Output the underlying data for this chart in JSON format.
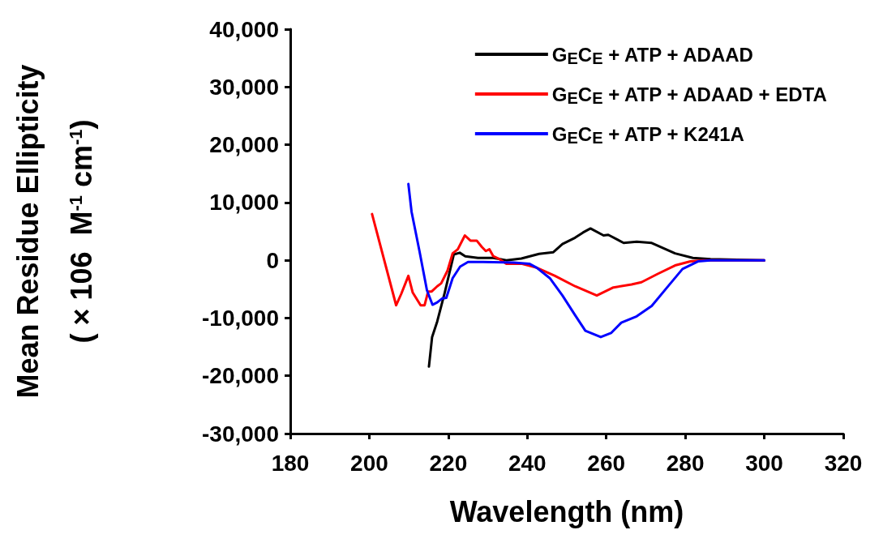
{
  "chart_data": {
    "type": "line",
    "xlabel": "Wavelength (nm)",
    "ylabel": "Mean Residue Ellipticity\n( × 106  M$^{-1}$ cm$^{-1}$)",
    "xlim": [
      180,
      320
    ],
    "xticks": [
      180,
      200,
      220,
      240,
      260,
      280,
      300,
      320
    ],
    "ylim": [
      -30000,
      40000
    ],
    "yticks": [
      {
        "value": -30000,
        "label": "-30,000"
      },
      {
        "value": -20000,
        "label": "-20,000"
      },
      {
        "value": -10000,
        "label": "-10,000"
      },
      0,
      {
        "value": 10000,
        "label": "10,000"
      },
      {
        "value": 20000,
        "label": "20,000"
      },
      {
        "value": 30000,
        "label": "30,000"
      },
      {
        "value": 40000,
        "label": "40,000"
      }
    ],
    "grid": false,
    "legend": "top right",
    "marker": "none",
    "line_style": "solid",
    "series": [
      {
        "name": "G$_{E}$C$_{E}$ + ATP + ADAAD",
        "color": "#000000",
        "x": [
          215.1,
          215.9,
          217.2,
          219.1,
          221.4,
          222.9,
          224.3,
          227.5,
          231.4,
          234.7,
          238.5,
          243,
          246.6,
          248.9,
          252.1,
          254.1,
          256,
          259.3,
          260.5,
          264.4,
          267.7,
          271.5,
          277.4,
          281.9,
          286.4,
          300
        ],
        "values": [
          -18400,
          -13300,
          -10600,
          -5600,
          1000,
          1300,
          700,
          400,
          400,
          0,
          300,
          1100,
          1400,
          2800,
          3900,
          4800,
          5500,
          4300,
          4400,
          3000,
          3200,
          3000,
          1200,
          400,
          200,
          0
        ]
      },
      {
        "name": "G$_{E}$C$_{E}$ + ATP + ADAAD + EDTA",
        "color": "#ff0000",
        "x": [
          200.7,
          206.8,
          208.1,
          209.9,
          211,
          213,
          214,
          214.9,
          215.8,
          217.2,
          218.2,
          219.8,
          221.1,
          222.4,
          224.2,
          225.6,
          227.2,
          228.5,
          229.5,
          230.4,
          231.4,
          232.7,
          234.7,
          238.5,
          242.4,
          247,
          252.1,
          257.6,
          261.8,
          266.4,
          268.9,
          272.9,
          277.4,
          281.3,
          284.5,
          300
        ],
        "values": [
          8000,
          -7800,
          -5800,
          -2700,
          -5600,
          -7800,
          -7800,
          -5400,
          -5400,
          -4500,
          -4000,
          -1800,
          1200,
          1900,
          4300,
          3400,
          3400,
          2300,
          1600,
          1900,
          700,
          300,
          -600,
          -600,
          -1300,
          -2700,
          -4500,
          -6100,
          -4700,
          -4200,
          -3800,
          -2400,
          -900,
          -200,
          0,
          0
        ]
      },
      {
        "name": "G$_{E}$C$_{E}$ + ATP + K241A",
        "color": "#0000ff",
        "x": [
          209.9,
          210.7,
          212.7,
          214.6,
          216,
          217.2,
          218.5,
          219.5,
          221.1,
          223,
          225,
          228.8,
          236.6,
          240.5,
          242.4,
          245.7,
          248.9,
          252.1,
          254.7,
          258.6,
          261.2,
          263.8,
          267.7,
          271.5,
          275.4,
          279.3,
          283.2,
          286.4,
          300
        ],
        "values": [
          13200,
          8400,
          1600,
          -5200,
          -7700,
          -7300,
          -6600,
          -6500,
          -3100,
          -1100,
          -300,
          -300,
          -400,
          -600,
          -1300,
          -3100,
          -6100,
          -9500,
          -12200,
          -13300,
          -12600,
          -10800,
          -9700,
          -7900,
          -4700,
          -1500,
          -200,
          0,
          0
        ]
      }
    ]
  }
}
